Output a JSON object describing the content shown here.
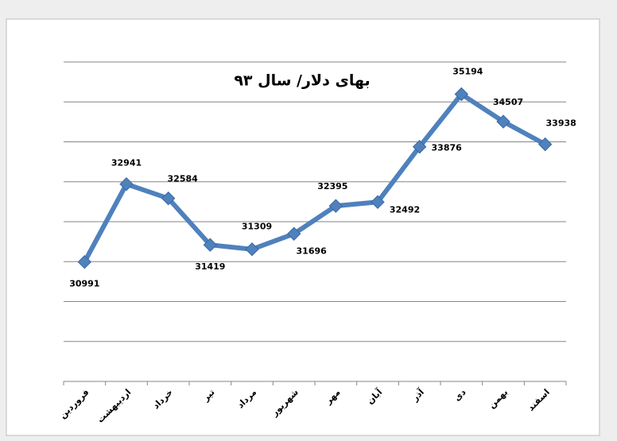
{
  "chart_data": {
    "type": "line",
    "title": "بهای دلار/ سال ۹۳",
    "categories": [
      "فروردین",
      "اردیبهشت",
      "خرداد",
      "تیر",
      "مرداد",
      "شهریور",
      "مهر",
      "آبان",
      "آذر",
      "دی",
      "بهمن",
      "اسفند"
    ],
    "values": [
      30991,
      32941,
      32584,
      31419,
      31309,
      31696,
      32395,
      32492,
      33876,
      35194,
      34507,
      33938
    ],
    "color": "#4f81bd",
    "ylim": [
      28000,
      36000
    ],
    "yticks": [
      28000,
      29000,
      30000,
      31000,
      32000,
      33000,
      34000,
      35000,
      36000
    ],
    "ytick_labels_shown": false,
    "grid": true
  }
}
